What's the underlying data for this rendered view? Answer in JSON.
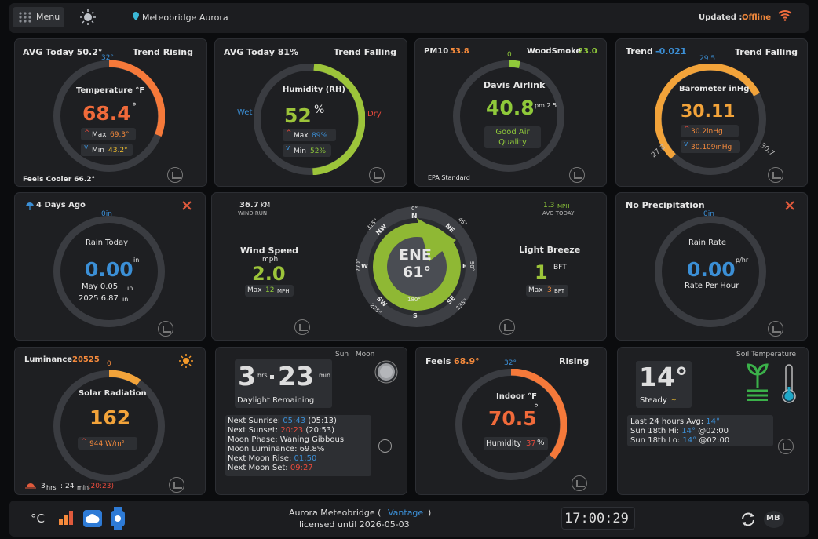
{
  "topbar": {
    "menu_label": "Menu",
    "station_label": "Meteobridge Aurora",
    "updated_label": "Updated : ",
    "updated_status": "Offline"
  },
  "temp": {
    "avg": "AVG Today 50.2°",
    "trend": "Trend Rising",
    "scale": "32°",
    "title": "Temperature °F",
    "value": "68.4",
    "unit": "°",
    "max_label": "Max",
    "max": "69.3°",
    "min_label": "Min",
    "min": "43.2°",
    "feels": "Feels Cooler 66.2°"
  },
  "humidity": {
    "avg": "AVG Today 81%",
    "trend": "Trend Falling",
    "title": "Humidity (RH)",
    "value": "52",
    "unit": "%",
    "wet": "Wet",
    "dry": "Dry",
    "max_label": "Max",
    "max": "89%",
    "min_label": "Min",
    "min": "52%"
  },
  "air": {
    "pm10_label": "PM10",
    "pm10": "53.8",
    "woodsmoke_label": "WoodSmoke",
    "woodsmoke": "23.0",
    "scale": "0",
    "title": "Davis Airlink",
    "value": "40.8",
    "unit": "pm 2.5",
    "quality": "Good Air Quality",
    "standard": "EPA Standard"
  },
  "baro": {
    "trend_label": "Trend",
    "trend_val": "-0.021",
    "trend": "Trend Falling",
    "scale_top": "29.5",
    "scale_left": "27.8",
    "scale_right": "30.7",
    "title": "Barometer inHg",
    "value": "30.11",
    "max": "30.2inHg",
    "min": "30.109inHg"
  },
  "rain": {
    "last": "4 Days Ago",
    "scale": "0in",
    "title": "Rain Today",
    "value": "0.00",
    "unit": "in",
    "month": "May 0.05",
    "month_unit": "in",
    "year": "2025 6.87",
    "year_unit": "in"
  },
  "wind": {
    "run": "36.7",
    "run_unit": "KM",
    "run_label": "WIND RUN",
    "avg": "1.3",
    "avg_unit": "MPH",
    "avg_label": "AVG TODAY",
    "speed_label": "Wind Speed",
    "speed_unit": "mph",
    "speed": "2.0",
    "max_label": "Max",
    "max": "12",
    "max_unit": "MPH",
    "dir": "ENE",
    "deg": "61°",
    "beaufort_label": "Light Breeze",
    "bft": "1",
    "bft_unit": "BFT",
    "bft_max": "3",
    "bft_max_unit": "BFT",
    "compass": {
      "n": "N",
      "ne": "NE",
      "e": "E",
      "se": "SE",
      "s": "S",
      "sw": "SW",
      "w": "W",
      "nw": "NW",
      "d0": "0°",
      "d45": "45°",
      "d90": "90°",
      "d135": "135°",
      "d180": "180°",
      "d225": "225°",
      "d270": "270°",
      "d315": "315°"
    }
  },
  "precip": {
    "title": "No Precipitation",
    "scale": "0in",
    "label": "Rain Rate",
    "value": "0.00",
    "unit": "p/hr",
    "sub": "Rate Per Hour"
  },
  "solar": {
    "lum_label": "Luminance",
    "lum": "20525",
    "scale": "0",
    "title": "Solar Radiation",
    "value": "162",
    "max": "944 W/m²",
    "uv_hrs": "3",
    "hrs_label": "hrs",
    "uv_min": "24",
    "min_label": "min",
    "uv_time": "(20:23)"
  },
  "sun": {
    "header": "Sun | Moon",
    "hrs": "3",
    "hrs_label": "hrs",
    "min": "23",
    "min_label": "min",
    "label": "Daylight Remaining",
    "rise_label": "Next Sunrise:",
    "rise": "05:43",
    "rise_paren": "(05:13)",
    "set_label": "Next Sunset:",
    "set": "20:23",
    "set_paren": "(20:53)",
    "phase": "Moon Phase: Waning Gibbous",
    "lum": "Moon Luminance: 69.8%",
    "moonrise_label": "Next Moon Rise:",
    "moonrise": "01:50",
    "moonset_label": "Next Moon Set:",
    "moonset": "09:27"
  },
  "indoor": {
    "feels_label": "Feels",
    "feels": "68.9°",
    "trend": "Rising",
    "scale": "32°",
    "title": "Indoor °F",
    "value": "70.5",
    "unit": "°",
    "hum_label": "Humidity",
    "hum": "37",
    "hum_unit": "%"
  },
  "soil": {
    "header": "Soil Temperature",
    "value": "14°",
    "state": "Steady",
    "avg_label": "Last 24 hours Avg:",
    "avg": "14°",
    "hi_label": "Sun 18th Hi:",
    "hi": "14°",
    "hi_time": "@02:00",
    "lo_label": "Sun 18th Lo:",
    "lo": "14°",
    "lo_time": "@02:00"
  },
  "footer": {
    "unit": "°C",
    "title1": "Aurora Meteobridge (",
    "vantage": "Vantage",
    "title2": ")",
    "license": "licensed until 2026-05-03",
    "clock": "17:00:29",
    "mb": "MB"
  }
}
